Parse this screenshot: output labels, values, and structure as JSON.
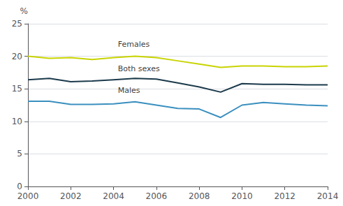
{
  "chart_data": {
    "type": "line",
    "ylabel": "%",
    "x": [
      2000,
      2001,
      2002,
      2003,
      2004,
      2005,
      2006,
      2007,
      2008,
      2009,
      2010,
      2011,
      2012,
      2013,
      2014
    ],
    "series": [
      {
        "name": "Females",
        "color": "#c8d400",
        "values": [
          20.0,
          19.7,
          19.8,
          19.5,
          19.8,
          20.0,
          19.8,
          19.3,
          18.8,
          18.3,
          18.5,
          18.5,
          18.4,
          18.4,
          18.5
        ]
      },
      {
        "name": "Both sexes",
        "color": "#1b3a4b",
        "values": [
          16.4,
          16.6,
          16.1,
          16.2,
          16.4,
          16.6,
          16.5,
          15.9,
          15.3,
          14.5,
          15.8,
          15.7,
          15.7,
          15.6,
          15.6
        ]
      },
      {
        "name": "Males",
        "color": "#3a8fbf",
        "values": [
          13.1,
          13.1,
          12.6,
          12.6,
          12.7,
          13.0,
          12.5,
          12.0,
          11.9,
          10.6,
          12.5,
          12.9,
          12.7,
          12.5,
          12.4
        ]
      }
    ],
    "annotations": [
      {
        "text": "Females",
        "x": 2004.2,
        "y": 21.2
      },
      {
        "text": "Both sexes",
        "x": 2004.2,
        "y": 17.5
      },
      {
        "text": "Males",
        "x": 2004.2,
        "y": 14.2
      }
    ],
    "xlim": [
      2000,
      2014
    ],
    "xticks": [
      2000,
      2002,
      2004,
      2006,
      2008,
      2010,
      2012,
      2014
    ],
    "ylim": [
      0,
      25
    ],
    "yticks": [
      0,
      5,
      10,
      15,
      20,
      25
    ],
    "grid": true
  }
}
